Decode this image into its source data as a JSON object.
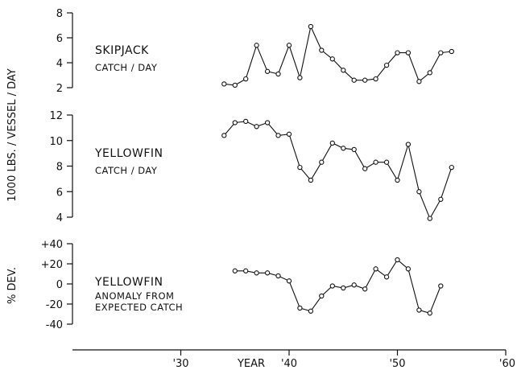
{
  "chart_data": {
    "type": "line",
    "x_axis": {
      "label": "YEAR",
      "range": [
        1920,
        1960
      ],
      "ticks": [
        {
          "value": 1930,
          "label": "'30"
        },
        {
          "value": 1940,
          "label": "'40"
        },
        {
          "value": 1950,
          "label": "'50"
        },
        {
          "value": 1960,
          "label": "'60"
        }
      ]
    },
    "shared_ylabel": "1000 LBS. / VESSEL / DAY",
    "grid": false,
    "panels": [
      {
        "id": "skipjack",
        "label": "SKIPJACK",
        "sublabel": "CATCH / DAY",
        "ylabel": "",
        "ylim": [
          2,
          8
        ],
        "yticks": [
          2,
          4,
          6,
          8
        ],
        "ytick_labels": [
          "2",
          "4",
          "6",
          "8"
        ],
        "series": [
          {
            "x": [
              1934,
              1935,
              1936,
              1937,
              1938,
              1939,
              1940,
              1941,
              1942,
              1943,
              1944,
              1945,
              1946,
              1947,
              1948,
              1949,
              1950,
              1951,
              1952,
              1953,
              1954,
              1955
            ],
            "values": [
              2.3,
              2.2,
              2.7,
              5.4,
              3.3,
              3.1,
              5.4,
              2.8,
              6.9,
              5.0,
              4.3,
              3.4,
              2.6,
              2.6,
              2.7,
              3.8,
              4.8,
              4.8,
              2.5,
              3.2,
              4.8,
              4.9
            ]
          }
        ]
      },
      {
        "id": "yellowfin",
        "label": "YELLOWFIN",
        "sublabel": "CATCH / DAY",
        "ylabel": "",
        "ylim": [
          4,
          12
        ],
        "yticks": [
          4,
          6,
          8,
          10,
          12
        ],
        "ytick_labels": [
          "4",
          "6",
          "8",
          "10",
          "12"
        ],
        "series": [
          {
            "x": [
              1934,
              1935,
              1936,
              1937,
              1938,
              1939,
              1940,
              1941,
              1942,
              1943,
              1944,
              1945,
              1946,
              1947,
              1948,
              1949,
              1950,
              1951,
              1952,
              1953,
              1954,
              1955
            ],
            "values": [
              10.4,
              11.4,
              11.5,
              11.1,
              11.4,
              10.4,
              10.5,
              7.9,
              6.9,
              8.3,
              9.8,
              9.4,
              9.3,
              7.8,
              8.3,
              8.3,
              6.9,
              9.7,
              6.0,
              3.9,
              5.4,
              7.9
            ]
          }
        ]
      },
      {
        "id": "anomaly",
        "label": "YELLOWFIN",
        "sublabel": [
          "ANOMALY FROM",
          "EXPECTED CATCH"
        ],
        "ylabel": "% DEV.",
        "ylim": [
          -40,
          40
        ],
        "yticks": [
          40,
          20,
          0,
          -20,
          -40
        ],
        "ytick_labels": [
          "+40",
          "+20",
          "0",
          "-20",
          "-40"
        ],
        "series": [
          {
            "x": [
              1935,
              1936,
              1937,
              1938,
              1939,
              1940,
              1941,
              1942,
              1943,
              1944,
              1945,
              1946,
              1947,
              1948,
              1949,
              1950,
              1951,
              1952,
              1953,
              1954
            ],
            "values": [
              13,
              13,
              11,
              11,
              8,
              3,
              -24,
              -27,
              -12,
              -2,
              -4,
              -1,
              -5,
              15,
              7,
              24,
              15,
              -26,
              -29,
              -2
            ]
          }
        ]
      }
    ]
  }
}
